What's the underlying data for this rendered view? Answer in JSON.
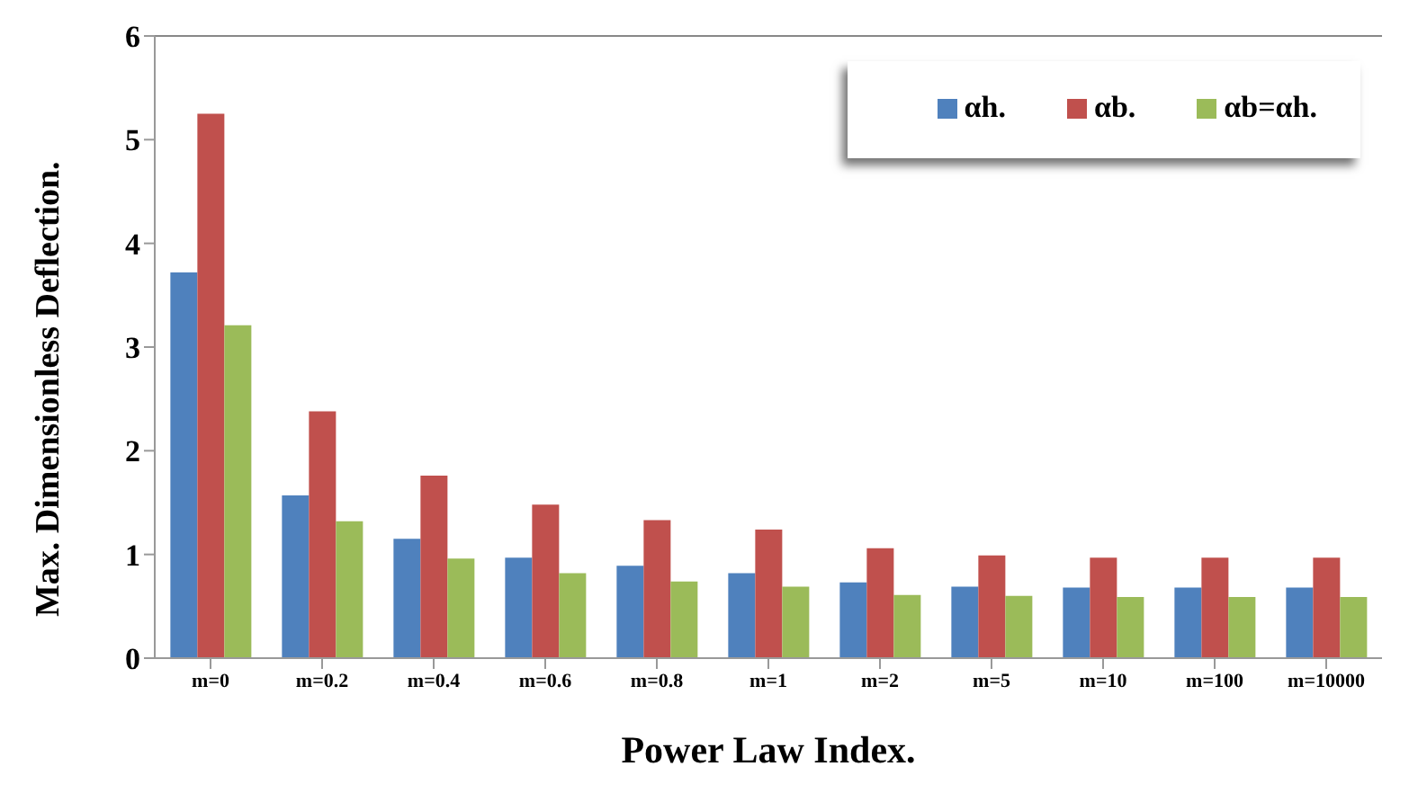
{
  "chart_data": {
    "type": "bar",
    "xlabel": "Power Law Index.",
    "ylabel": "Max. Dimensionless Deflection.",
    "categories": [
      "m=0",
      "m=0.2",
      "m=0.4",
      "m=0.6",
      "m=0.8",
      "m=1",
      "m=2",
      "m=5",
      "m=10",
      "m=100",
      "m=10000"
    ],
    "series": [
      {
        "name": "αh.",
        "color": "#4f81bd",
        "values": [
          3.72,
          1.57,
          1.15,
          0.97,
          0.89,
          0.82,
          0.73,
          0.69,
          0.68,
          0.68,
          0.68
        ]
      },
      {
        "name": "αb.",
        "color": "#c0504d",
        "values": [
          5.25,
          2.38,
          1.76,
          1.48,
          1.33,
          1.24,
          1.06,
          0.99,
          0.97,
          0.97,
          0.97
        ]
      },
      {
        "name": "αb=αh.",
        "color": "#9bbb59",
        "values": [
          3.21,
          1.32,
          0.96,
          0.82,
          0.74,
          0.69,
          0.61,
          0.6,
          0.59,
          0.59,
          0.59
        ]
      }
    ],
    "ylim": [
      0,
      6
    ],
    "yticks": [
      0,
      1,
      2,
      3,
      4,
      5,
      6
    ],
    "legend": "top right",
    "grid": false
  }
}
